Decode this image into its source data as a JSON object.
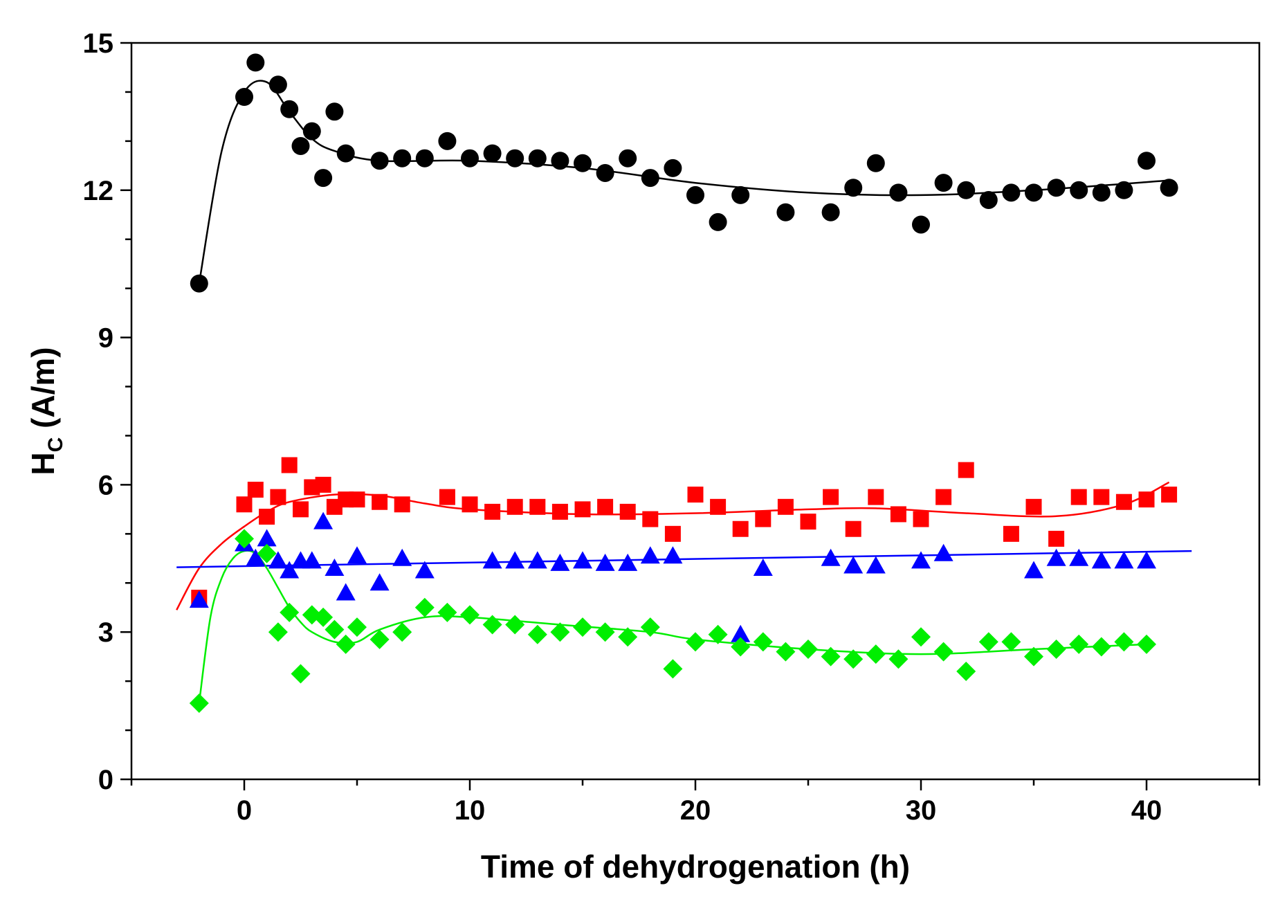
{
  "chart_data": {
    "type": "scatter",
    "title": "",
    "xlabel": "Time of dehydrogenation (h)",
    "ylabel": {
      "main": "H",
      "sub": "C",
      "unit": " (A/m)"
    },
    "xlim": [
      -5,
      45
    ],
    "ylim": [
      0,
      15
    ],
    "xticks": [
      0,
      10,
      20,
      30,
      40
    ],
    "xtick_labels": [
      "0",
      "10",
      "20",
      "30",
      "40"
    ],
    "yticks": [
      0,
      3,
      6,
      9,
      12,
      15
    ],
    "ytick_labels": [
      "0",
      "3",
      "6",
      "9",
      "12",
      "15"
    ],
    "grid": false,
    "series": [
      {
        "name": "black circles",
        "marker": "circle",
        "color": "#000000",
        "x": [
          -2,
          0,
          0.5,
          1.5,
          2,
          2.5,
          3,
          3.5,
          4,
          4.5,
          6,
          7,
          8,
          9,
          10,
          11,
          12,
          13,
          14,
          15,
          16,
          17,
          18,
          19,
          20,
          21,
          22,
          24,
          26,
          27,
          28,
          29,
          30,
          31,
          32,
          33,
          34,
          35,
          36,
          37,
          38,
          39,
          40,
          41
        ],
        "y": [
          10.1,
          13.9,
          14.6,
          14.15,
          13.65,
          12.9,
          13.2,
          12.25,
          13.6,
          12.75,
          12.6,
          12.65,
          12.65,
          13.0,
          12.65,
          12.75,
          12.65,
          12.65,
          12.6,
          12.55,
          12.35,
          12.65,
          12.25,
          12.45,
          11.9,
          11.35,
          11.9,
          11.55,
          11.55,
          12.05,
          12.55,
          11.95,
          11.3,
          12.15,
          12.0,
          11.8,
          11.95,
          11.95,
          12.05,
          12.0,
          11.95,
          12.0,
          12.6,
          12.05
        ],
        "fit_x": [
          -2,
          -1,
          0,
          1,
          2,
          3,
          4,
          6,
          10,
          15,
          20,
          25,
          30,
          35,
          41
        ],
        "fit_y": [
          10.1,
          12.8,
          14.0,
          14.2,
          13.6,
          13.05,
          12.8,
          12.6,
          12.6,
          12.45,
          12.15,
          11.95,
          11.9,
          12.0,
          12.2
        ]
      },
      {
        "name": "red squares",
        "marker": "square",
        "color": "#ff0000",
        "x": [
          -2,
          0,
          0.5,
          1,
          1.5,
          2,
          2.5,
          3,
          3.5,
          4,
          4.5,
          5,
          6,
          7,
          9,
          10,
          11,
          12,
          13,
          14,
          15,
          16,
          17,
          18,
          19,
          20,
          21,
          22,
          23,
          24,
          25,
          26,
          27,
          28,
          29,
          30,
          31,
          32,
          34,
          35,
          36,
          37,
          38,
          39,
          40,
          41
        ],
        "y": [
          3.7,
          5.6,
          5.9,
          5.35,
          5.75,
          6.4,
          5.5,
          5.95,
          6.0,
          5.55,
          5.7,
          5.7,
          5.65,
          5.6,
          5.75,
          5.6,
          5.45,
          5.55,
          5.55,
          5.45,
          5.5,
          5.55,
          5.45,
          5.3,
          5.0,
          5.8,
          5.55,
          5.1,
          5.3,
          5.55,
          5.25,
          5.75,
          5.1,
          5.75,
          5.4,
          5.3,
          5.75,
          6.3,
          5.0,
          5.55,
          4.9,
          5.75,
          5.75,
          5.65,
          5.7,
          5.8
        ],
        "fit_x": [
          -3,
          -2,
          -1,
          0,
          1,
          2,
          4,
          6,
          8,
          10,
          15,
          20,
          25,
          28,
          32,
          36,
          39,
          41
        ],
        "fit_y": [
          3.45,
          4.3,
          4.8,
          5.15,
          5.45,
          5.65,
          5.8,
          5.78,
          5.62,
          5.5,
          5.4,
          5.42,
          5.5,
          5.52,
          5.42,
          5.36,
          5.6,
          6.05
        ]
      },
      {
        "name": "blue triangles",
        "marker": "triangle",
        "color": "#0000ff",
        "x": [
          -2,
          0,
          0.5,
          1,
          1.5,
          2,
          2.5,
          3,
          3.5,
          4,
          4.5,
          5,
          6,
          7,
          8,
          11,
          12,
          13,
          14,
          15,
          16,
          17,
          18,
          19,
          22,
          23,
          26,
          27,
          28,
          30,
          31,
          35,
          36,
          37,
          38,
          39,
          40
        ],
        "y": [
          3.65,
          4.8,
          4.5,
          4.9,
          4.45,
          4.25,
          4.45,
          4.45,
          5.25,
          4.3,
          3.8,
          4.55,
          4.0,
          4.5,
          4.25,
          4.45,
          4.45,
          4.45,
          4.4,
          4.45,
          4.4,
          4.4,
          4.55,
          4.55,
          2.95,
          4.3,
          4.5,
          4.35,
          4.35,
          4.45,
          4.6,
          4.25,
          4.5,
          4.5,
          4.45,
          4.45,
          4.45
        ],
        "fit_x": [
          -3,
          42
        ],
        "fit_y": [
          4.32,
          4.65
        ]
      },
      {
        "name": "green diamonds",
        "marker": "diamond",
        "color": "#00ee00",
        "x": [
          -2,
          0,
          1,
          1.5,
          2,
          2.5,
          3,
          3.5,
          4,
          4.5,
          5,
          6,
          7,
          8,
          9,
          10,
          11,
          12,
          13,
          14,
          15,
          16,
          17,
          18,
          19,
          20,
          21,
          22,
          23,
          24,
          25,
          26,
          27,
          28,
          29,
          30,
          31,
          32,
          33,
          34,
          35,
          36,
          37,
          38,
          39,
          40
        ],
        "y": [
          1.55,
          4.9,
          4.6,
          3.0,
          3.4,
          2.15,
          3.35,
          3.3,
          3.05,
          2.75,
          3.1,
          2.85,
          3.0,
          3.5,
          3.4,
          3.35,
          3.15,
          3.15,
          2.95,
          3.0,
          3.1,
          3.0,
          2.9,
          3.1,
          2.25,
          2.8,
          2.95,
          2.7,
          2.8,
          2.6,
          2.65,
          2.5,
          2.45,
          2.55,
          2.45,
          2.9,
          2.6,
          2.2,
          2.8,
          2.8,
          2.5,
          2.65,
          2.75,
          2.7,
          2.8,
          2.75
        ],
        "fit_x": [
          -2,
          -1.5,
          -1,
          -0.5,
          0,
          0.5,
          1,
          1.5,
          2,
          2.5,
          3,
          4,
          5,
          6,
          8,
          10,
          14,
          18,
          20,
          25,
          30,
          35,
          40
        ],
        "fit_y": [
          1.55,
          3.3,
          4.1,
          4.5,
          4.65,
          4.6,
          4.3,
          3.9,
          3.5,
          3.2,
          3.0,
          2.8,
          2.8,
          3.05,
          3.3,
          3.3,
          3.15,
          3.0,
          2.85,
          2.65,
          2.55,
          2.65,
          2.75
        ]
      }
    ]
  }
}
